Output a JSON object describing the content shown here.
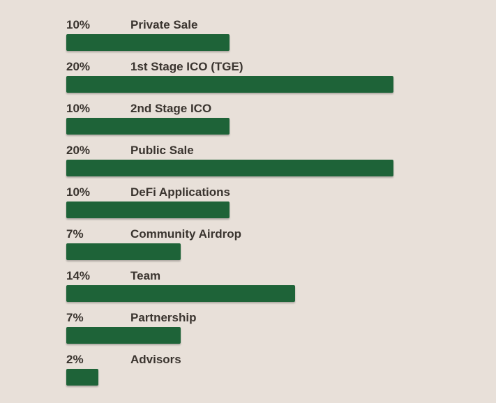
{
  "chart_data": {
    "type": "bar",
    "orientation": "horizontal",
    "bar_color": "#1e6338",
    "categories": [
      "Private Sale",
      "1st Stage ICO (TGE)",
      "2nd Stage ICO",
      "Public Sale",
      "DeFi Applications",
      "Community Airdrop",
      "Team",
      "Partnership",
      "Advisors"
    ],
    "values": [
      10,
      20,
      10,
      20,
      10,
      7,
      14,
      7,
      2
    ],
    "value_labels": [
      "10%",
      "20%",
      "10%",
      "20%",
      "10%",
      "7%",
      "14%",
      "7%",
      "2%"
    ],
    "xlim": [
      0,
      24
    ],
    "grid": false
  }
}
